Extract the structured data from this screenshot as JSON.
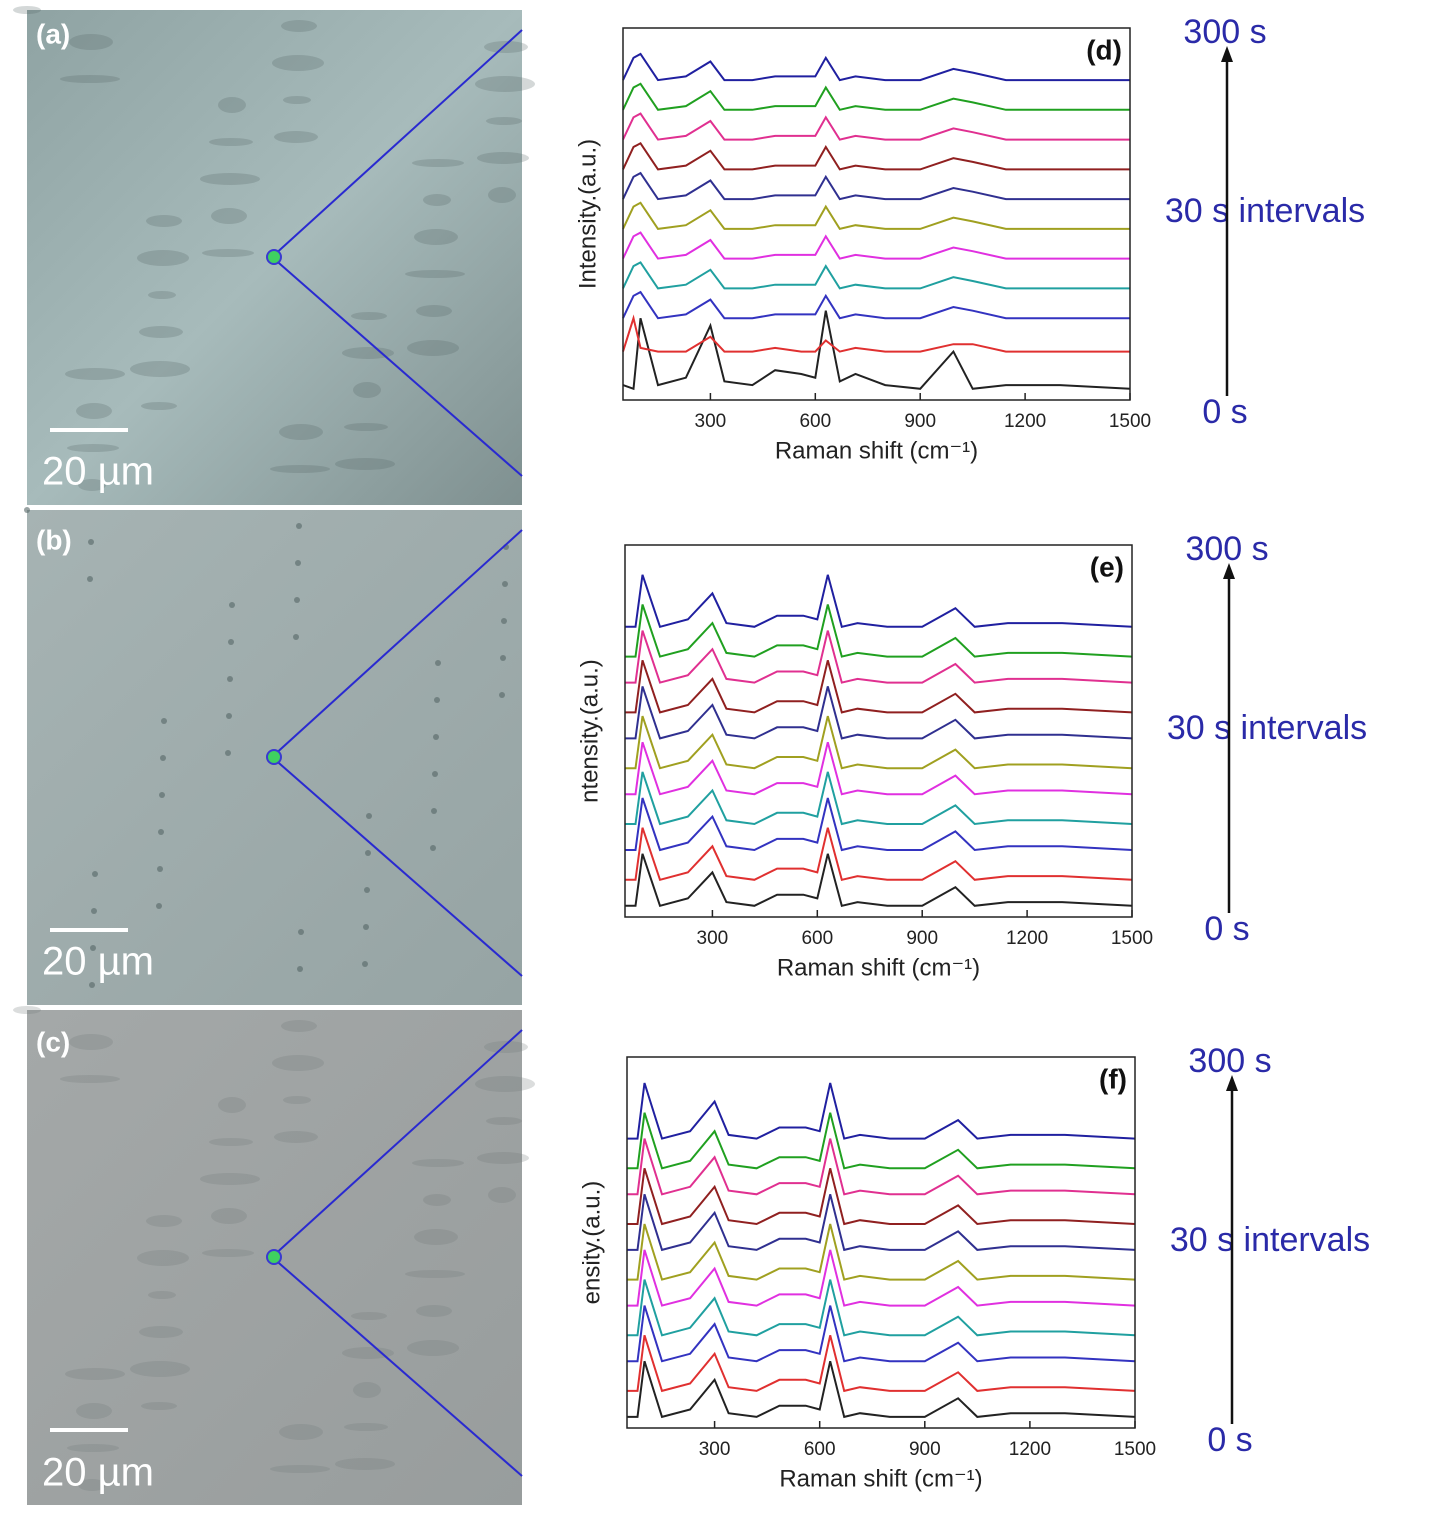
{
  "images": [
    {
      "label": "(a)",
      "scale": "20 µm"
    },
    {
      "label": "(b)",
      "scale": "20 µm"
    },
    {
      "label": "(c)",
      "scale": "20 µm"
    }
  ],
  "chart_data": [
    {
      "type": "line",
      "x_label": "Raman shift (cm⁻¹)",
      "y_label": "Intensity.(a.u.)",
      "annotations": [
        "(d)",
        "300 s",
        "30 s intervals",
        "0 s"
      ],
      "x": [
        50,
        80,
        100,
        150,
        230,
        300,
        340,
        420,
        485,
        560,
        600,
        630,
        670,
        715,
        800,
        900,
        995,
        1050,
        1145,
        1300,
        1500
      ],
      "xlim": [
        50,
        1500
      ],
      "xticks": [
        300,
        600,
        900,
        1200,
        1500
      ],
      "ylim": [
        0,
        100
      ],
      "series": [
        {
          "color": "#222222",
          "values": [
            4,
            3,
            22,
            4,
            6,
            20,
            5,
            4,
            8,
            7,
            6,
            24,
            5,
            7,
            4,
            3,
            13,
            3,
            4,
            4,
            3
          ]
        },
        {
          "color": "#e03030",
          "values": [
            13,
            22,
            14,
            13,
            13,
            17,
            13,
            13,
            14,
            13,
            13,
            16,
            13,
            14,
            13,
            13,
            15,
            15,
            13,
            13,
            13
          ]
        },
        {
          "color": "#3333c0",
          "values": [
            22,
            28,
            29,
            22,
            23,
            27,
            22,
            22,
            23,
            23,
            23,
            28,
            22,
            23,
            22,
            22,
            25,
            24,
            22,
            22,
            22
          ]
        },
        {
          "color": "#20a0a0",
          "values": [
            30,
            36,
            37,
            30,
            31,
            35,
            30,
            30,
            31,
            31,
            31,
            36,
            30,
            31,
            30,
            30,
            33,
            32,
            30,
            30,
            30
          ]
        },
        {
          "color": "#e030e0",
          "values": [
            38,
            44,
            45,
            38,
            39,
            43,
            38,
            38,
            39,
            39,
            39,
            44,
            38,
            39,
            38,
            38,
            41,
            40,
            38,
            38,
            38
          ]
        },
        {
          "color": "#a0a020",
          "values": [
            46,
            52,
            53,
            46,
            47,
            51,
            46,
            46,
            47,
            47,
            47,
            52,
            46,
            47,
            46,
            46,
            49,
            48,
            46,
            46,
            46
          ]
        },
        {
          "color": "#303090",
          "values": [
            54,
            60,
            61,
            54,
            55,
            59,
            54,
            54,
            55,
            55,
            55,
            60,
            54,
            55,
            54,
            54,
            57,
            56,
            54,
            54,
            54
          ]
        },
        {
          "color": "#902020",
          "values": [
            62,
            68,
            69,
            62,
            63,
            67,
            62,
            62,
            63,
            63,
            63,
            68,
            62,
            63,
            62,
            62,
            65,
            64,
            62,
            62,
            62
          ]
        },
        {
          "color": "#e03090",
          "values": [
            70,
            76,
            77,
            70,
            71,
            75,
            70,
            70,
            71,
            71,
            71,
            76,
            70,
            71,
            70,
            70,
            73,
            72,
            70,
            70,
            70
          ]
        },
        {
          "color": "#20a020",
          "values": [
            78,
            84,
            85,
            78,
            79,
            83,
            78,
            78,
            79,
            79,
            79,
            84,
            78,
            79,
            78,
            78,
            81,
            80,
            78,
            78,
            78
          ]
        },
        {
          "color": "#2020a0",
          "values": [
            86,
            92,
            93,
            86,
            87,
            91,
            86,
            86,
            87,
            87,
            87,
            92,
            86,
            87,
            86,
            86,
            89,
            88,
            86,
            86,
            86
          ]
        }
      ]
    },
    {
      "type": "line",
      "x_label": "Raman shift (cm⁻¹)",
      "y_label": "ntensity.(a.u.)",
      "annotations": [
        "(e)",
        "300 s",
        "30 s intervals",
        "0 s"
      ],
      "x": [
        50,
        80,
        100,
        150,
        230,
        300,
        340,
        420,
        485,
        560,
        600,
        630,
        670,
        715,
        800,
        900,
        995,
        1050,
        1145,
        1300,
        1500
      ],
      "xlim": [
        50,
        1500
      ],
      "xticks": [
        300,
        600,
        900,
        1200,
        1500
      ],
      "ylim": [
        0,
        100
      ],
      "series": [
        {
          "color": "#222222",
          "values": [
            3,
            3,
            17,
            3,
            5,
            12,
            4,
            3,
            6,
            6,
            5,
            17,
            3,
            4,
            3,
            3,
            8,
            3,
            4,
            4,
            3
          ]
        },
        {
          "color": "#e03030",
          "values": [
            10,
            10,
            24,
            10,
            12,
            19,
            11,
            10,
            13,
            13,
            12,
            24,
            10,
            11,
            10,
            10,
            15,
            10,
            11,
            11,
            10
          ]
        },
        {
          "color": "#3333c0",
          "values": [
            18,
            18,
            32,
            18,
            20,
            27,
            19,
            18,
            21,
            21,
            20,
            32,
            18,
            19,
            18,
            18,
            23,
            18,
            19,
            19,
            18
          ]
        },
        {
          "color": "#20a0a0",
          "values": [
            25,
            25,
            39,
            25,
            27,
            34,
            26,
            25,
            28,
            28,
            27,
            39,
            25,
            26,
            25,
            25,
            30,
            25,
            26,
            26,
            25
          ]
        },
        {
          "color": "#e030e0",
          "values": [
            33,
            33,
            47,
            33,
            35,
            42,
            34,
            33,
            36,
            36,
            35,
            47,
            33,
            34,
            33,
            33,
            38,
            33,
            34,
            34,
            33
          ]
        },
        {
          "color": "#a0a020",
          "values": [
            40,
            40,
            54,
            40,
            42,
            49,
            41,
            40,
            43,
            43,
            42,
            54,
            40,
            41,
            40,
            40,
            45,
            40,
            41,
            41,
            40
          ]
        },
        {
          "color": "#303090",
          "values": [
            48,
            48,
            62,
            48,
            50,
            57,
            49,
            48,
            51,
            51,
            50,
            62,
            48,
            49,
            48,
            48,
            53,
            48,
            49,
            49,
            48
          ]
        },
        {
          "color": "#902020",
          "values": [
            55,
            55,
            69,
            55,
            57,
            64,
            56,
            55,
            58,
            58,
            57,
            69,
            55,
            56,
            55,
            55,
            60,
            55,
            56,
            56,
            55
          ]
        },
        {
          "color": "#e03090",
          "values": [
            63,
            63,
            77,
            63,
            65,
            72,
            64,
            63,
            66,
            66,
            65,
            77,
            63,
            64,
            63,
            63,
            68,
            63,
            64,
            64,
            63
          ]
        },
        {
          "color": "#20a020",
          "values": [
            70,
            70,
            84,
            70,
            72,
            79,
            71,
            70,
            73,
            73,
            72,
            84,
            70,
            71,
            70,
            70,
            75,
            70,
            71,
            71,
            70
          ]
        },
        {
          "color": "#2020a0",
          "values": [
            78,
            78,
            92,
            78,
            80,
            87,
            79,
            78,
            81,
            81,
            80,
            92,
            78,
            79,
            78,
            78,
            83,
            78,
            79,
            79,
            78
          ]
        }
      ]
    },
    {
      "type": "line",
      "x_label": "Raman shift (cm⁻¹)",
      "y_label": "ensity.(a.u.)",
      "annotations": [
        "(f)",
        "300 s",
        "30 s intervals",
        "0 s"
      ],
      "x": [
        50,
        80,
        100,
        150,
        230,
        300,
        340,
        420,
        485,
        560,
        600,
        630,
        670,
        715,
        800,
        900,
        995,
        1050,
        1145,
        1300,
        1500
      ],
      "xlim": [
        50,
        1500
      ],
      "xticks": [
        300,
        600,
        900,
        1200,
        1500
      ],
      "ylim": [
        0,
        100
      ],
      "series": [
        {
          "color": "#222222",
          "values": [
            3,
            3,
            18,
            3,
            5,
            13,
            4,
            3,
            6,
            6,
            5,
            18,
            3,
            4,
            3,
            3,
            8,
            3,
            4,
            4,
            3
          ]
        },
        {
          "color": "#e03030",
          "values": [
            10,
            10,
            25,
            10,
            12,
            20,
            11,
            10,
            13,
            13,
            12,
            25,
            10,
            11,
            10,
            10,
            15,
            10,
            11,
            11,
            10
          ]
        },
        {
          "color": "#3333c0",
          "values": [
            18,
            18,
            33,
            18,
            20,
            28,
            19,
            18,
            21,
            21,
            20,
            33,
            18,
            19,
            18,
            18,
            23,
            18,
            19,
            19,
            18
          ]
        },
        {
          "color": "#20a0a0",
          "values": [
            25,
            25,
            40,
            25,
            27,
            35,
            26,
            25,
            28,
            28,
            27,
            40,
            25,
            26,
            25,
            25,
            30,
            25,
            26,
            26,
            25
          ]
        },
        {
          "color": "#e030e0",
          "values": [
            33,
            33,
            48,
            33,
            35,
            43,
            34,
            33,
            36,
            36,
            35,
            48,
            33,
            34,
            33,
            33,
            38,
            33,
            34,
            34,
            33
          ]
        },
        {
          "color": "#a0a020",
          "values": [
            40,
            40,
            55,
            40,
            42,
            50,
            41,
            40,
            43,
            43,
            42,
            55,
            40,
            41,
            40,
            40,
            45,
            40,
            41,
            41,
            40
          ]
        },
        {
          "color": "#303090",
          "values": [
            48,
            48,
            63,
            48,
            50,
            58,
            49,
            48,
            51,
            51,
            50,
            63,
            48,
            49,
            48,
            48,
            53,
            48,
            49,
            49,
            48
          ]
        },
        {
          "color": "#902020",
          "values": [
            55,
            55,
            70,
            55,
            57,
            65,
            56,
            55,
            58,
            58,
            57,
            70,
            55,
            56,
            55,
            55,
            60,
            55,
            56,
            56,
            55
          ]
        },
        {
          "color": "#e03090",
          "values": [
            63,
            63,
            78,
            63,
            65,
            73,
            64,
            63,
            66,
            66,
            65,
            78,
            63,
            64,
            63,
            63,
            68,
            63,
            64,
            64,
            63
          ]
        },
        {
          "color": "#20a020",
          "values": [
            70,
            70,
            85,
            70,
            72,
            80,
            71,
            70,
            73,
            73,
            72,
            85,
            70,
            71,
            70,
            70,
            75,
            70,
            71,
            71,
            70
          ]
        },
        {
          "color": "#2020a0",
          "values": [
            78,
            78,
            93,
            78,
            80,
            88,
            79,
            78,
            81,
            81,
            80,
            93,
            78,
            79,
            78,
            78,
            83,
            78,
            79,
            79,
            78
          ]
        }
      ]
    }
  ]
}
